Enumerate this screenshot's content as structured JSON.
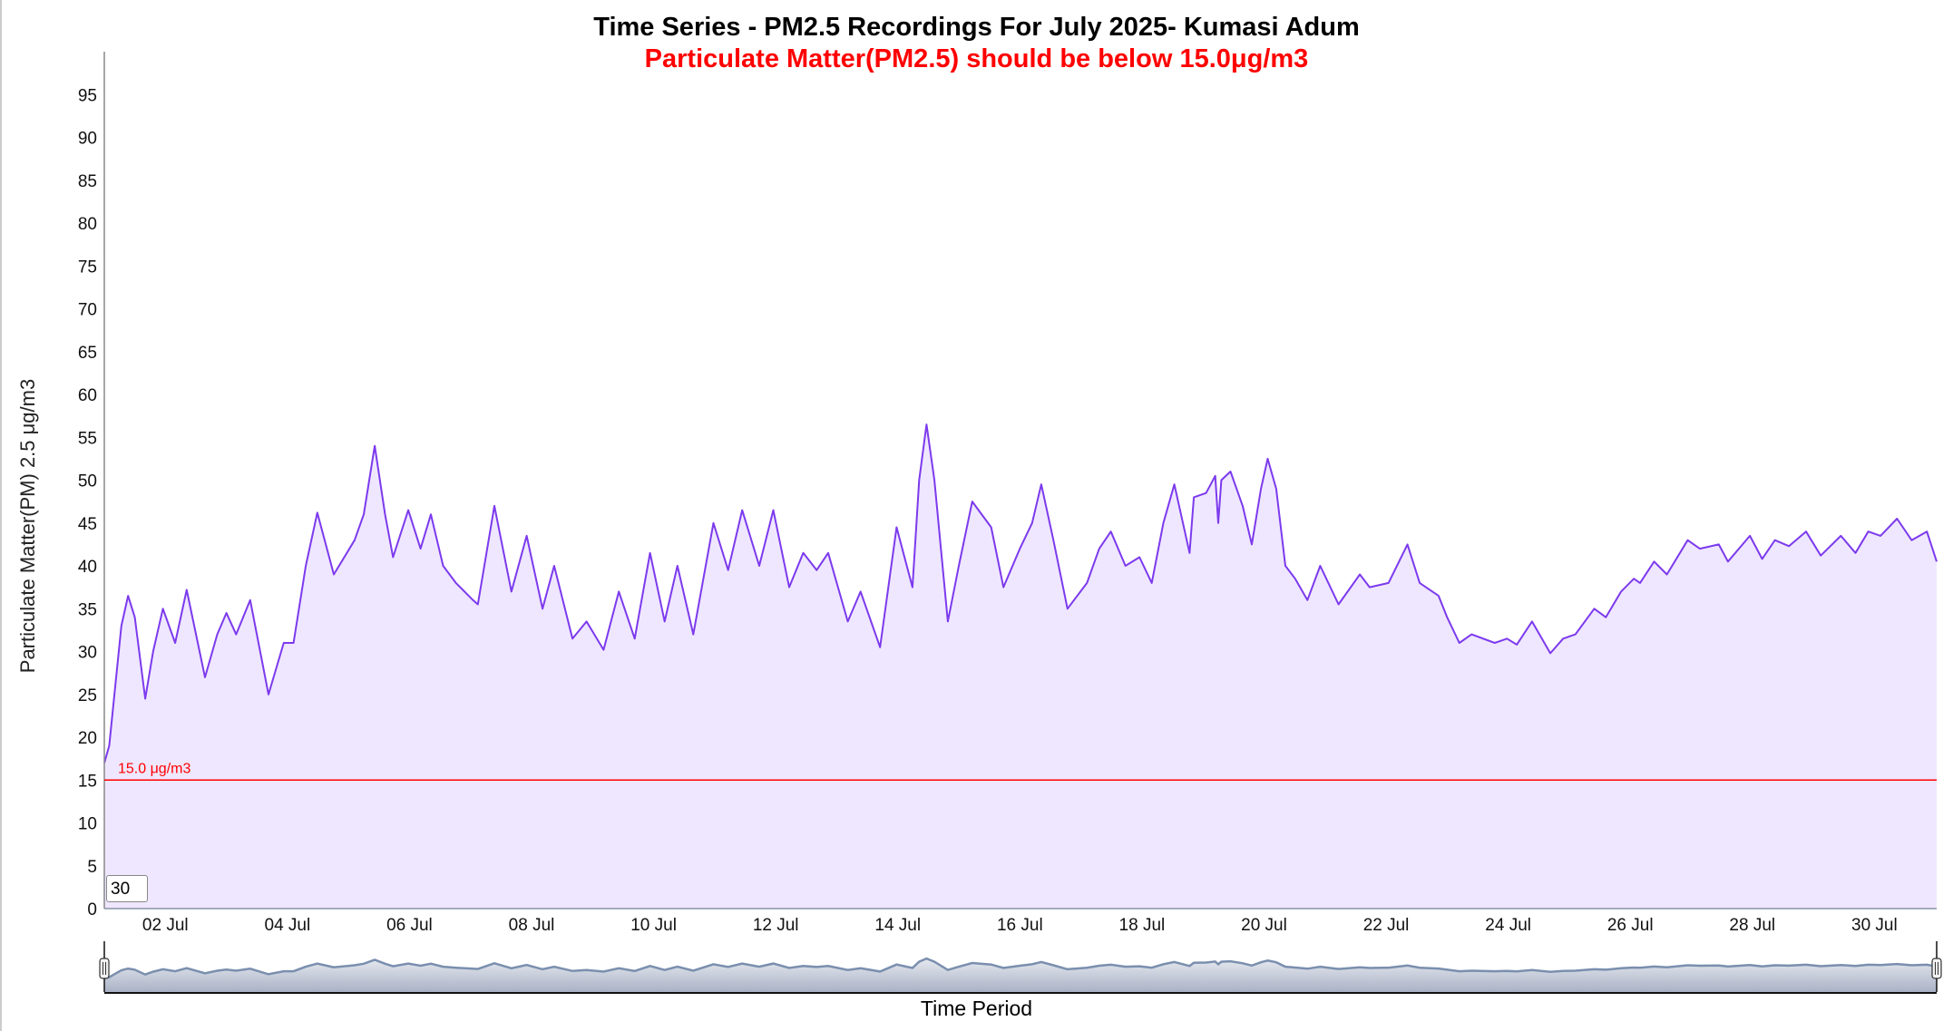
{
  "title": "Time Series - PM2.5 Recordings For July 2025- Kumasi Adum",
  "subtitle": "Particulate Matter(PM2.5) should be below 15.0μg/m3",
  "range_input_value": "30",
  "colors": {
    "line": "#7c3aed",
    "fill": "#efe7ff",
    "threshold": "#ff0000",
    "navigator_line": "#7a8fae"
  },
  "chart_data": {
    "type": "area",
    "title": "Time Series - PM2.5 Recordings For July 2025- Kumasi Adum",
    "xlabel": "Time Period",
    "ylabel": "Particulate Matter(PM) 2.5 μg/m3",
    "x_unit": "days since 01 Jul 2025 00:00",
    "xlim": [
      0,
      30.02
    ],
    "ylim": [
      0,
      100
    ],
    "y_ticks": [
      0,
      5,
      10,
      15,
      20,
      25,
      30,
      35,
      40,
      45,
      50,
      55,
      60,
      65,
      70,
      75,
      80,
      85,
      90,
      95
    ],
    "x_ticks": [
      {
        "x": 1,
        "label": "02 Jul"
      },
      {
        "x": 3,
        "label": "04 Jul"
      },
      {
        "x": 5,
        "label": "06 Jul"
      },
      {
        "x": 7,
        "label": "08 Jul"
      },
      {
        "x": 9,
        "label": "10 Jul"
      },
      {
        "x": 11,
        "label": "12 Jul"
      },
      {
        "x": 13,
        "label": "14 Jul"
      },
      {
        "x": 15,
        "label": "16 Jul"
      },
      {
        "x": 17,
        "label": "18 Jul"
      },
      {
        "x": 19,
        "label": "20 Jul"
      },
      {
        "x": 21,
        "label": "22 Jul"
      },
      {
        "x": 23,
        "label": "24 Jul"
      },
      {
        "x": 25,
        "label": "26 Jul"
      },
      {
        "x": 27,
        "label": "28 Jul"
      },
      {
        "x": 29,
        "label": "30 Jul"
      }
    ],
    "threshold": {
      "value": 15,
      "label": "15.0 μg/m3"
    },
    "grid": false,
    "series": [
      {
        "name": "PM2.5",
        "points": [
          [
            0,
            17
          ],
          [
            0.08,
            19
          ],
          [
            0.18,
            26
          ],
          [
            0.28,
            33
          ],
          [
            0.39,
            36.5
          ],
          [
            0.5,
            34
          ],
          [
            0.67,
            24.5
          ],
          [
            0.8,
            30
          ],
          [
            0.96,
            35
          ],
          [
            1.16,
            31
          ],
          [
            1.35,
            37.2
          ],
          [
            1.65,
            27
          ],
          [
            1.85,
            32
          ],
          [
            2.0,
            34.5
          ],
          [
            2.16,
            32
          ],
          [
            2.39,
            36
          ],
          [
            2.69,
            25
          ],
          [
            2.94,
            31
          ],
          [
            3.1,
            31
          ],
          [
            3.3,
            40
          ],
          [
            3.49,
            46.2
          ],
          [
            3.76,
            39
          ],
          [
            4.1,
            43
          ],
          [
            4.25,
            46
          ],
          [
            4.43,
            54
          ],
          [
            4.6,
            46
          ],
          [
            4.73,
            41
          ],
          [
            4.98,
            46.5
          ],
          [
            5.18,
            42
          ],
          [
            5.35,
            46
          ],
          [
            5.55,
            40
          ],
          [
            5.76,
            38
          ],
          [
            6.04,
            36
          ],
          [
            6.12,
            35.5
          ],
          [
            6.39,
            47
          ],
          [
            6.67,
            37
          ],
          [
            6.92,
            43.5
          ],
          [
            7.18,
            35
          ],
          [
            7.37,
            40
          ],
          [
            7.67,
            31.5
          ],
          [
            7.9,
            33.5
          ],
          [
            8.18,
            30.2
          ],
          [
            8.43,
            37
          ],
          [
            8.69,
            31.5
          ],
          [
            8.94,
            41.5
          ],
          [
            9.18,
            33.5
          ],
          [
            9.39,
            40
          ],
          [
            9.65,
            32
          ],
          [
            9.98,
            45
          ],
          [
            10.22,
            39.5
          ],
          [
            10.45,
            46.5
          ],
          [
            10.73,
            40
          ],
          [
            10.96,
            46.5
          ],
          [
            11.22,
            37.5
          ],
          [
            11.45,
            41.5
          ],
          [
            11.67,
            39.5
          ],
          [
            11.86,
            41.5
          ],
          [
            12.18,
            33.5
          ],
          [
            12.39,
            37
          ],
          [
            12.71,
            30.5
          ],
          [
            12.98,
            44.5
          ],
          [
            13.24,
            37.5
          ],
          [
            13.35,
            50
          ],
          [
            13.47,
            56.5
          ],
          [
            13.6,
            50
          ],
          [
            13.82,
            33.5
          ],
          [
            14.0,
            40
          ],
          [
            14.22,
            47.5
          ],
          [
            14.53,
            44.5
          ],
          [
            14.73,
            37.5
          ],
          [
            15.0,
            42
          ],
          [
            15.2,
            45
          ],
          [
            15.35,
            49.5
          ],
          [
            15.55,
            43
          ],
          [
            15.78,
            35
          ],
          [
            16.1,
            38
          ],
          [
            16.3,
            42
          ],
          [
            16.49,
            44
          ],
          [
            16.73,
            40
          ],
          [
            16.96,
            41
          ],
          [
            17.16,
            38
          ],
          [
            17.35,
            45
          ],
          [
            17.53,
            49.5
          ],
          [
            17.78,
            41.5
          ],
          [
            17.85,
            48
          ],
          [
            18.05,
            48.5
          ],
          [
            18.2,
            50.5
          ],
          [
            18.25,
            45
          ],
          [
            18.3,
            50
          ],
          [
            18.45,
            51
          ],
          [
            18.65,
            47
          ],
          [
            18.8,
            42.5
          ],
          [
            18.95,
            49
          ],
          [
            19.06,
            52.5
          ],
          [
            19.2,
            49
          ],
          [
            19.35,
            40
          ],
          [
            19.51,
            38.5
          ],
          [
            19.71,
            36
          ],
          [
            19.92,
            40
          ],
          [
            20.22,
            35.5
          ],
          [
            20.57,
            39
          ],
          [
            20.73,
            37.5
          ],
          [
            21.04,
            38
          ],
          [
            21.35,
            42.5
          ],
          [
            21.55,
            38
          ],
          [
            21.86,
            36.5
          ],
          [
            22.0,
            34
          ],
          [
            22.2,
            31
          ],
          [
            22.4,
            32
          ],
          [
            22.78,
            31
          ],
          [
            22.98,
            31.5
          ],
          [
            23.14,
            30.8
          ],
          [
            23.39,
            33.5
          ],
          [
            23.69,
            29.8
          ],
          [
            23.9,
            31.5
          ],
          [
            24.1,
            32
          ],
          [
            24.41,
            35
          ],
          [
            24.6,
            34
          ],
          [
            24.85,
            37
          ],
          [
            25.06,
            38.5
          ],
          [
            25.16,
            38
          ],
          [
            25.39,
            40.5
          ],
          [
            25.6,
            39
          ],
          [
            25.94,
            43
          ],
          [
            26.14,
            42
          ],
          [
            26.45,
            42.5
          ],
          [
            26.6,
            40.5
          ],
          [
            26.96,
            43.5
          ],
          [
            27.16,
            40.8
          ],
          [
            27.37,
            43
          ],
          [
            27.6,
            42.3
          ],
          [
            27.88,
            44
          ],
          [
            28.12,
            41.2
          ],
          [
            28.45,
            43.5
          ],
          [
            28.69,
            41.5
          ],
          [
            28.9,
            44
          ],
          [
            29.1,
            43.5
          ],
          [
            29.37,
            45.5
          ],
          [
            29.61,
            43
          ],
          [
            29.86,
            44
          ],
          [
            30.02,
            40.5
          ]
        ]
      }
    ]
  }
}
